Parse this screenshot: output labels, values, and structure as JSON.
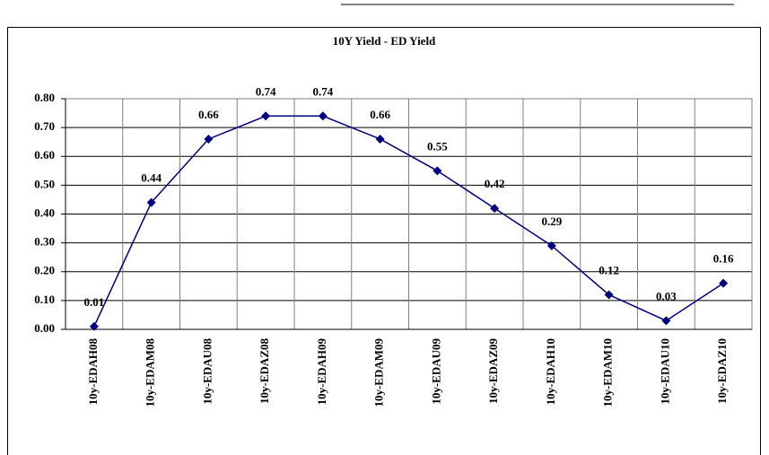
{
  "chart_data": {
    "type": "line",
    "title": "10Y Yield - ED Yield",
    "categories": [
      "10y-EDAH08",
      "10y-EDAM08",
      "10y-EDAU08",
      "10y-EDAZ08",
      "10y-EDAH09",
      "10y-EDAM09",
      "10y-EDAU09",
      "10y-EDAZ09",
      "10y-EDAH10",
      "10y-EDAM10",
      "10y-EDAU10",
      "10y-EDAZ10"
    ],
    "values": [
      0.01,
      0.44,
      0.66,
      0.74,
      0.74,
      0.66,
      0.55,
      0.42,
      0.29,
      0.12,
      0.03,
      0.16
    ],
    "color": "#000080",
    "ylim": [
      0,
      0.8
    ],
    "yticks": [
      {
        "value": 0,
        "label": "0.00"
      },
      {
        "value": 0.1,
        "label": "0.10"
      },
      {
        "value": 0.2,
        "label": "0.20"
      },
      {
        "value": 0.3,
        "label": "0.30"
      },
      {
        "value": 0.4,
        "label": "0.40"
      },
      {
        "value": 0.5,
        "label": "0.50"
      },
      {
        "value": 0.6,
        "label": "0.60"
      },
      {
        "value": 0.7,
        "label": "0.70"
      },
      {
        "value": 0.8,
        "label": "0.80"
      }
    ],
    "grid": true
  }
}
